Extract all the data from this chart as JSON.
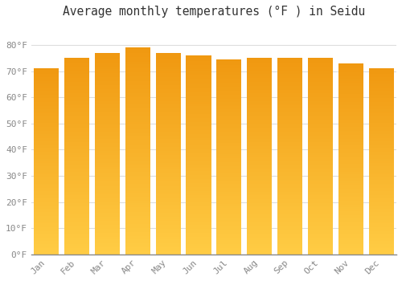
{
  "title": "Average monthly temperatures (°F ) in Seidu",
  "months": [
    "Jan",
    "Feb",
    "Mar",
    "Apr",
    "May",
    "Jun",
    "Jul",
    "Aug",
    "Sep",
    "Oct",
    "Nov",
    "Dec"
  ],
  "values": [
    71,
    75,
    77,
    79,
    77,
    76,
    74.5,
    75,
    75,
    75,
    73,
    71
  ],
  "bar_color_top": "#F5A623",
  "bar_color_bottom": "#FFD060",
  "ylim": [
    0,
    88
  ],
  "yticks": [
    0,
    10,
    20,
    30,
    40,
    50,
    60,
    70,
    80
  ],
  "ytick_labels": [
    "0°F",
    "10°F",
    "20°F",
    "30°F",
    "40°F",
    "50°F",
    "60°F",
    "70°F",
    "80°F"
  ],
  "background_color": "#FFFFFF",
  "grid_color": "#DDDDDD",
  "title_fontsize": 10.5,
  "tick_fontsize": 8,
  "font_family": "monospace"
}
